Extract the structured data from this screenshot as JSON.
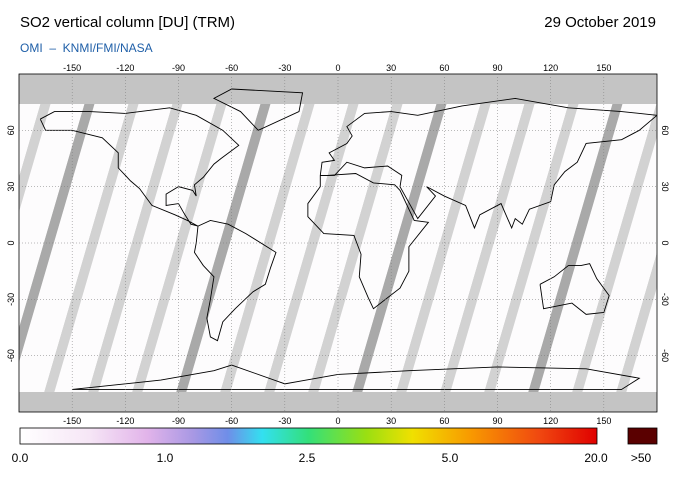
{
  "header": {
    "title": "SO2 vertical column [DU] (TRM)",
    "date": "29 October 2019",
    "source": "OMI  –  KNMI/FMI/NASA"
  },
  "map": {
    "lon_ticks": [
      "-150",
      "-120",
      "-90",
      "-60",
      "-30",
      "0",
      "30",
      "60",
      "90",
      "120",
      "150"
    ],
    "lat_ticks": [
      "60",
      "30",
      "0",
      "-30",
      "-60"
    ]
  },
  "colorbar": {
    "labels": [
      "0.0",
      "1.0",
      "2.5",
      "5.0",
      "20.0"
    ],
    "overflow_label": ">50"
  }
}
